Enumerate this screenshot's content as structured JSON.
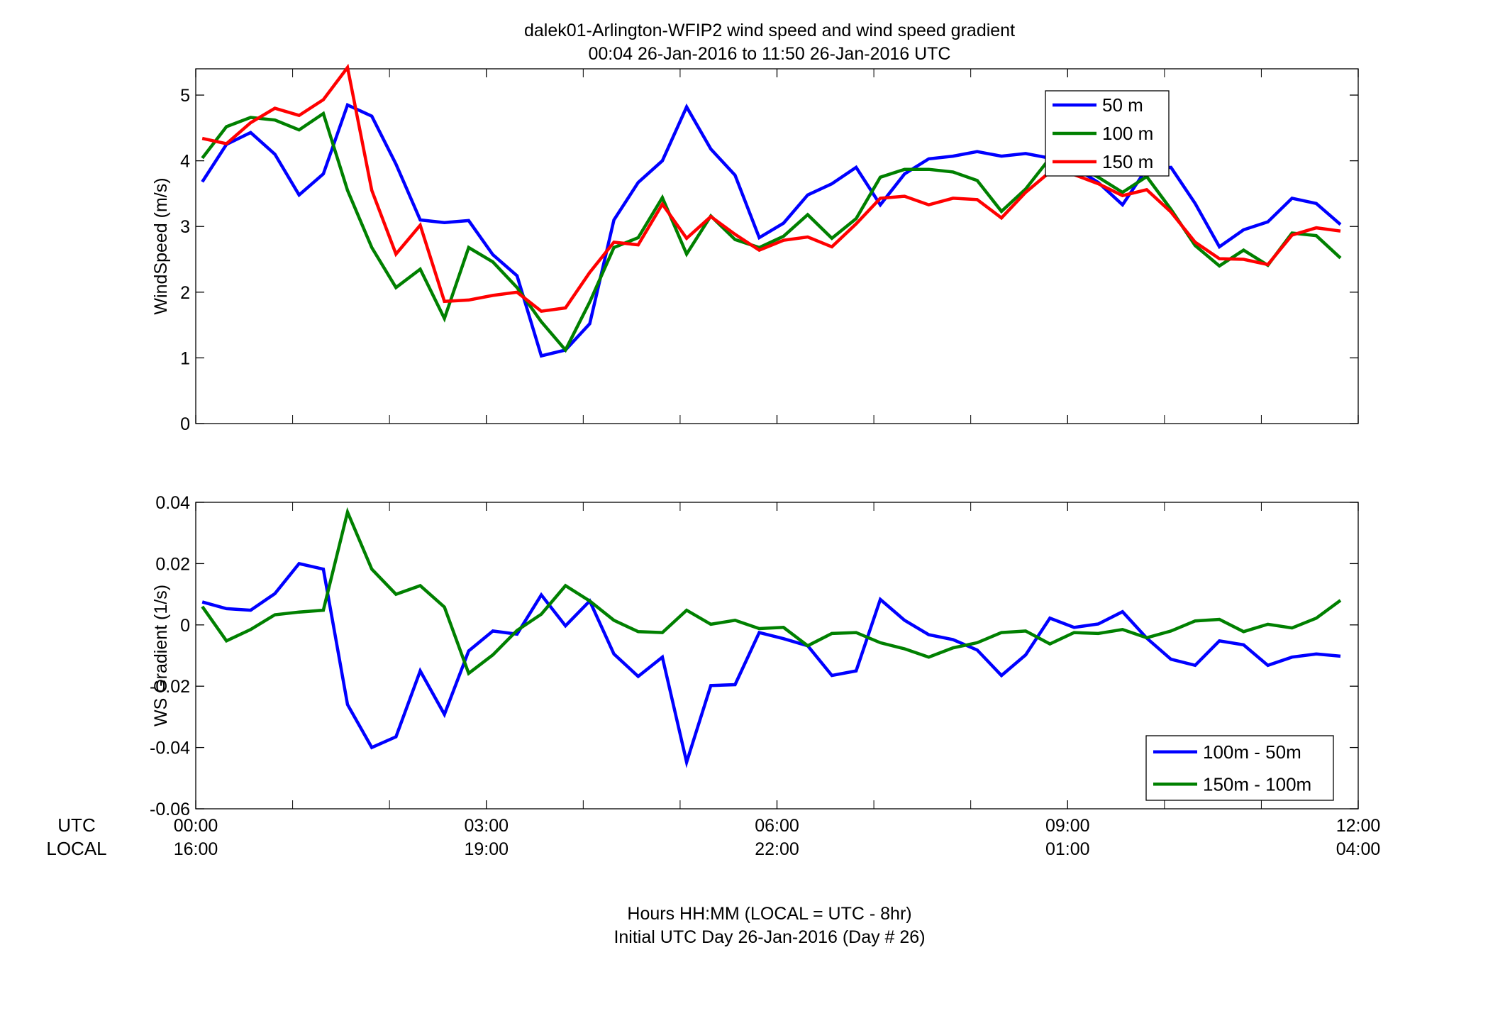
{
  "figure": {
    "title_line1": "dalek01-Arlington-WFIP2  wind speed and wind speed gradient",
    "title_line2": "00:04 26-Jan-2016 to 11:50 26-Jan-2016  UTC",
    "xlabel_line1": "Hours HH:MM  (LOCAL = UTC - 8hr)",
    "xlabel_line2": "Initial UTC Day 26-Jan-2016 (Day # 26)",
    "row_label_utc": "UTC",
    "row_label_local": "LOCAL",
    "utc_ticks": [
      "00:00",
      "03:00",
      "06:00",
      "09:00",
      "12:00"
    ],
    "local_ticks": [
      "16:00",
      "19:00",
      "22:00",
      "01:00",
      "04:00"
    ]
  },
  "chart_data": [
    {
      "type": "line",
      "ylabel": "WindSpeed (m/s)",
      "xlim": [
        0,
        12
      ],
      "ylim": [
        0,
        5.4
      ],
      "yticks": [
        0,
        1,
        2,
        3,
        4,
        5
      ],
      "grid": false,
      "legend_position": "top-right",
      "x_start": 0.067,
      "x_step": 0.25,
      "series": [
        {
          "name": "50 m",
          "color": "#0000ff",
          "values": [
            3.68,
            4.25,
            4.43,
            4.1,
            3.48,
            3.8,
            4.85,
            4.68,
            3.95,
            3.1,
            3.06,
            3.09,
            2.57,
            2.25,
            1.03,
            1.12,
            1.52,
            3.1,
            3.67,
            4.0,
            4.82,
            4.18,
            3.78,
            2.83,
            3.05,
            3.48,
            3.65,
            3.9,
            3.33,
            3.8,
            4.03,
            4.07,
            4.14,
            4.07,
            4.11,
            4.04,
            3.9,
            3.67,
            3.33,
            3.88,
            3.9,
            3.35,
            2.69,
            2.95,
            3.07,
            3.43,
            3.35,
            3.03
          ]
        },
        {
          "name": "100 m",
          "color": "#008000",
          "values": [
            4.04,
            4.52,
            4.66,
            4.62,
            4.47,
            4.72,
            3.55,
            2.68,
            2.07,
            2.35,
            1.6,
            2.68,
            2.46,
            2.07,
            1.55,
            1.12,
            1.85,
            2.68,
            2.83,
            3.44,
            2.58,
            3.16,
            2.8,
            2.68,
            2.85,
            3.18,
            2.82,
            3.12,
            3.75,
            3.87,
            3.87,
            3.83,
            3.7,
            3.23,
            3.57,
            4.04,
            3.95,
            3.75,
            3.52,
            3.76,
            3.26,
            2.71,
            2.4,
            2.64,
            2.41,
            2.9,
            2.86,
            2.52
          ]
        },
        {
          "name": "150 m",
          "color": "#ff0000",
          "values": [
            4.34,
            4.26,
            4.58,
            4.8,
            4.69,
            4.93,
            5.42,
            3.55,
            2.58,
            3.02,
            1.86,
            1.88,
            1.95,
            2.0,
            1.71,
            1.76,
            2.3,
            2.76,
            2.72,
            3.34,
            2.82,
            3.15,
            2.88,
            2.64,
            2.79,
            2.84,
            2.69,
            3.04,
            3.43,
            3.46,
            3.33,
            3.43,
            3.41,
            3.13,
            3.52,
            3.83,
            3.79,
            3.65,
            3.47,
            3.56,
            3.22,
            2.76,
            2.51,
            2.5,
            2.42,
            2.87,
            2.98,
            2.93
          ]
        }
      ]
    },
    {
      "type": "line",
      "ylabel": "WS Gradient (1/s)",
      "xlim": [
        0,
        12
      ],
      "ylim": [
        -0.06,
        0.04
      ],
      "yticks": [
        -0.06,
        -0.04,
        -0.02,
        0,
        0.02,
        0.04
      ],
      "ytick_labels": [
        "-0.06",
        "-0.04",
        "-0.02",
        "0",
        "0.02",
        "0.04"
      ],
      "grid": false,
      "legend_position": "bottom-right",
      "x_start": 0.067,
      "x_step": 0.25,
      "series": [
        {
          "name": "100m - 50m",
          "color": "#0000ff",
          "values": [
            0.0075,
            0.0053,
            0.0048,
            0.0102,
            0.02,
            0.0182,
            -0.026,
            -0.04,
            -0.0365,
            -0.015,
            -0.0292,
            -0.0085,
            -0.002,
            -0.003,
            0.0098,
            -0.0003,
            0.0078,
            -0.0095,
            -0.0168,
            -0.0105,
            -0.0448,
            -0.0198,
            -0.0195,
            -0.0025,
            -0.0045,
            -0.0068,
            -0.0165,
            -0.015,
            0.0083,
            0.0015,
            -0.0032,
            -0.0048,
            -0.0082,
            -0.0165,
            -0.0098,
            0.0022,
            -0.0008,
            0.0003,
            0.0043,
            -0.0043,
            -0.0112,
            -0.0132,
            -0.0052,
            -0.0065,
            -0.0132,
            -0.0105,
            -0.0095,
            -0.0102
          ]
        },
        {
          "name": "150m - 100m",
          "color": "#008000",
          "values": [
            0.006,
            -0.0052,
            -0.0015,
            0.0033,
            0.0042,
            0.0048,
            0.0368,
            0.0182,
            0.01,
            0.0128,
            0.0058,
            -0.0158,
            -0.0098,
            -0.0018,
            0.0035,
            0.0128,
            0.0078,
            0.0015,
            -0.0022,
            -0.0025,
            0.0048,
            0.0002,
            0.0015,
            -0.0012,
            -0.0008,
            -0.0068,
            -0.0028,
            -0.0025,
            -0.0058,
            -0.0078,
            -0.0105,
            -0.0075,
            -0.0058,
            -0.0025,
            -0.002,
            -0.0062,
            -0.0025,
            -0.0028,
            -0.0015,
            -0.0042,
            -0.002,
            0.0013,
            0.0018,
            -0.0022,
            0.0002,
            -0.001,
            0.0022,
            0.008
          ]
        }
      ]
    }
  ]
}
